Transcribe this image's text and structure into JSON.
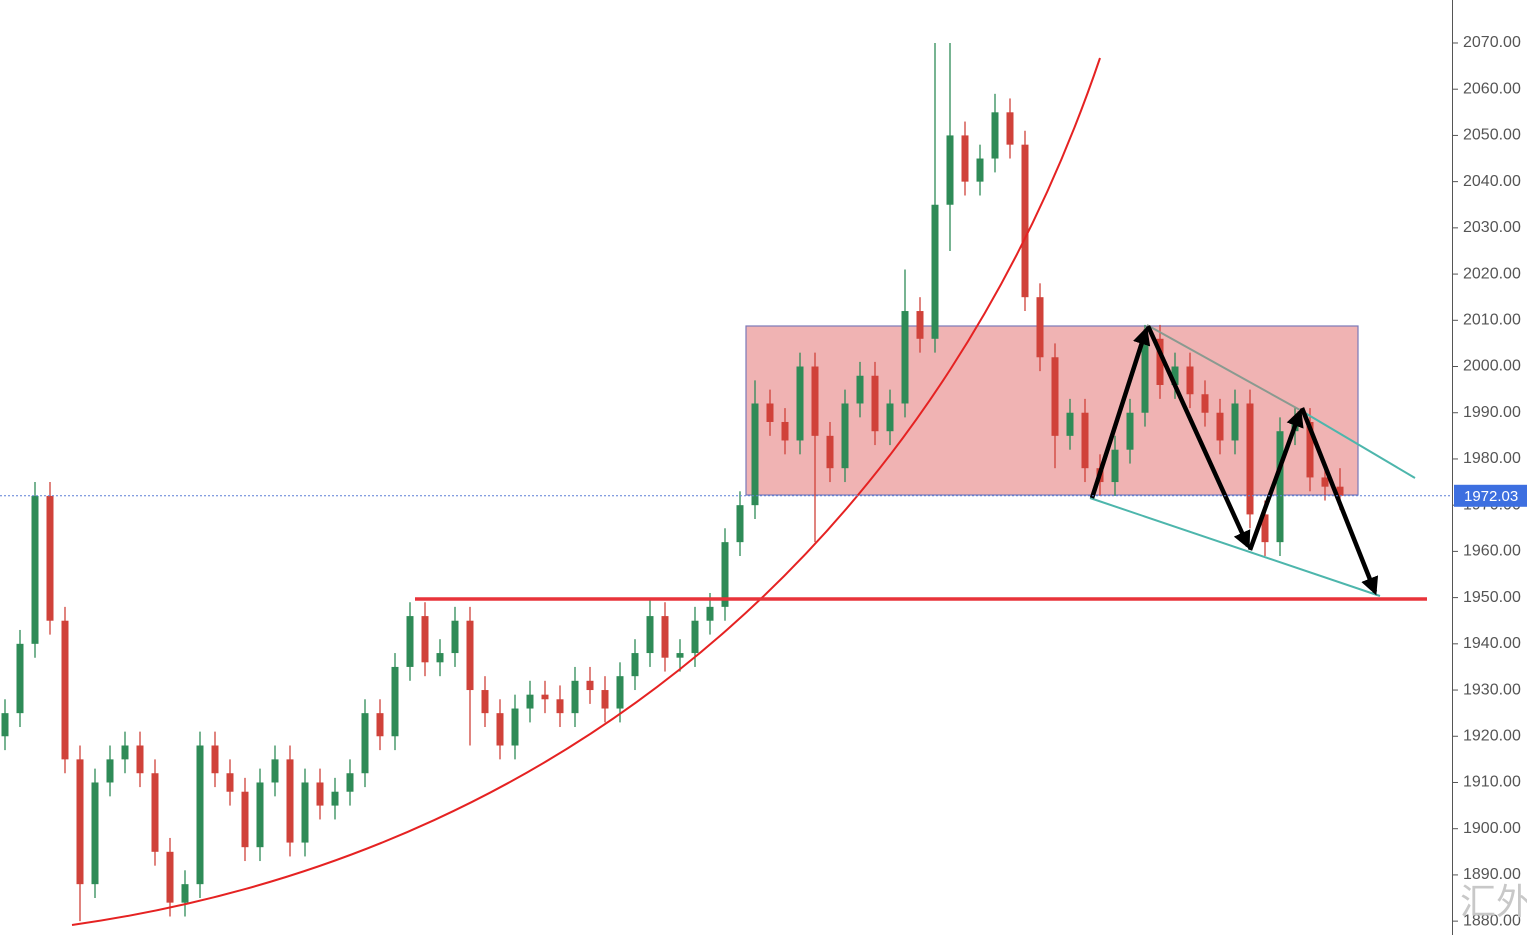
{
  "chart_data": {
    "type": "candlestick",
    "up_color": "#2e8b57",
    "down_color": "#d0423a",
    "ylim": [
      1877,
      2079.3
    ],
    "yticks": [
      {
        "value": 1880,
        "label": "1880.00"
      },
      {
        "value": 1890,
        "label": "1890.00"
      },
      {
        "value": 1900,
        "label": "1900.00"
      },
      {
        "value": 1910,
        "label": "1910.00"
      },
      {
        "value": 1920,
        "label": "1920.00"
      },
      {
        "value": 1930,
        "label": "1930.00"
      },
      {
        "value": 1940,
        "label": "1940.00"
      },
      {
        "value": 1950,
        "label": "1950.00"
      },
      {
        "value": 1960,
        "label": "1960.00"
      },
      {
        "value": 1970,
        "label": "1970.00"
      },
      {
        "value": 1980,
        "label": "1980.00"
      },
      {
        "value": 1990,
        "label": "1990.00"
      },
      {
        "value": 2000,
        "label": "2000.00"
      },
      {
        "value": 2010,
        "label": "2010.00"
      },
      {
        "value": 2020,
        "label": "2020.00"
      },
      {
        "value": 2030,
        "label": "2030.00"
      },
      {
        "value": 2040,
        "label": "2040.00"
      },
      {
        "value": 2050,
        "label": "2050.00"
      },
      {
        "value": 2060,
        "label": "2060.00"
      },
      {
        "value": 2070,
        "label": "2070.00"
      }
    ],
    "last_price": 1972.03,
    "watermark": "汇外网",
    "open": [
      1920,
      1925,
      1940,
      1972,
      1945,
      1915,
      1888,
      1910,
      1915,
      1918,
      1912,
      1895,
      1884,
      1888,
      1918,
      1912,
      1908,
      1896,
      1910,
      1915,
      1897,
      1910,
      1905,
      1908,
      1912,
      1925,
      1920,
      1935,
      1946,
      1936,
      1938,
      1945,
      1930,
      1925,
      1918,
      1926,
      1929,
      1928,
      1925,
      1932,
      1930,
      1926,
      1933,
      1938,
      1946,
      1937,
      1938,
      1945,
      1948,
      1962,
      1970,
      1992,
      1988,
      1984,
      2000,
      1985,
      1978,
      1992,
      1998,
      1986,
      1992,
      2012,
      2006,
      2035,
      2050,
      2040,
      2045,
      2055,
      2048,
      2015,
      2002,
      1985,
      1990,
      1978,
      1975,
      1982,
      1990,
      2006,
      1996,
      2000,
      1994,
      1990,
      1984,
      1992,
      1968,
      1962,
      1986,
      1988,
      1976,
      1974
    ],
    "high": [
      1928,
      1943,
      1975,
      1975,
      1948,
      1918,
      1913,
      1918,
      1921,
      1921,
      1915,
      1898,
      1891,
      1921,
      1921,
      1915,
      1911,
      1913,
      1918,
      1918,
      1913,
      1913,
      1911,
      1915,
      1928,
      1928,
      1938,
      1949,
      1949,
      1941,
      1948,
      1948,
      1933,
      1928,
      1929,
      1932,
      1932,
      1931,
      1935,
      1935,
      1933,
      1936,
      1941,
      1950,
      1949,
      1941,
      1948,
      1951,
      1965,
      1973,
      1997,
      1995,
      1991,
      2003,
      2003,
      1988,
      1995,
      2001,
      2001,
      1995,
      2021,
      2015,
      2070,
      2070,
      2053,
      2048,
      2059,
      2058,
      2051,
      2018,
      2005,
      1993,
      1993,
      1981,
      1985,
      1993,
      2009,
      2009,
      2003,
      2003,
      1997,
      1993,
      1995,
      1995,
      1971,
      1989,
      1991,
      1991,
      1979,
      1978
    ],
    "low": [
      1917,
      1922,
      1937,
      1942,
      1912,
      1880,
      1885,
      1907,
      1912,
      1909,
      1892,
      1881,
      1881,
      1885,
      1909,
      1905,
      1893,
      1893,
      1907,
      1894,
      1894,
      1902,
      1902,
      1905,
      1909,
      1917,
      1917,
      1932,
      1933,
      1933,
      1935,
      1918,
      1922,
      1915,
      1915,
      1923,
      1925,
      1922,
      1922,
      1927,
      1923,
      1923,
      1930,
      1935,
      1934,
      1934,
      1935,
      1942,
      1945,
      1959,
      1967,
      1985,
      1981,
      1981,
      1962,
      1975,
      1975,
      1989,
      1983,
      1983,
      1989,
      2003,
      2003,
      2025,
      2037,
      2037,
      2042,
      2045,
      2012,
      1999,
      1978,
      1982,
      1975,
      1972,
      1972,
      1979,
      1987,
      1993,
      1993,
      1991,
      1987,
      1981,
      1981,
      1965,
      1959,
      1959,
      1983,
      1973,
      1971,
      1969
    ],
    "close": [
      1925,
      1940,
      1972,
      1945,
      1915,
      1888,
      1910,
      1915,
      1918,
      1912,
      1895,
      1884,
      1888,
      1918,
      1912,
      1908,
      1896,
      1910,
      1915,
      1897,
      1910,
      1905,
      1908,
      1912,
      1925,
      1920,
      1935,
      1946,
      1936,
      1938,
      1945,
      1930,
      1925,
      1918,
      1926,
      1929,
      1928,
      1925,
      1932,
      1930,
      1926,
      1933,
      1938,
      1946,
      1937,
      1938,
      1945,
      1948,
      1962,
      1970,
      1992,
      1988,
      1984,
      2000,
      1985,
      1978,
      1992,
      1998,
      1986,
      1992,
      2012,
      2006,
      2035,
      2050,
      2040,
      2045,
      2055,
      2048,
      2015,
      2002,
      1985,
      1990,
      1978,
      1975,
      1982,
      1990,
      2006,
      1996,
      2000,
      1994,
      1990,
      1984,
      1992,
      1968,
      1962,
      1986,
      1988,
      1976,
      1974,
      1972.03
    ]
  }
}
